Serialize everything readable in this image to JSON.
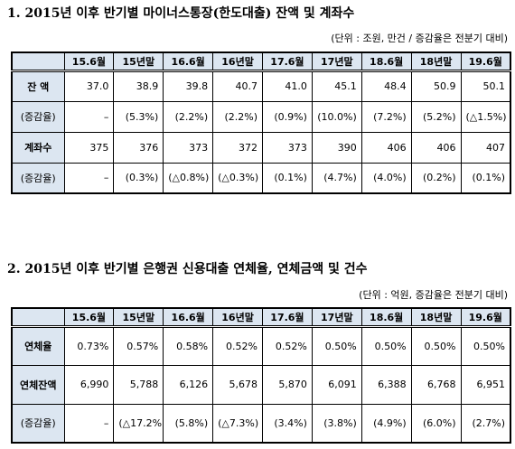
{
  "tables": [
    {
      "title": "1. 2015년 이후 반기별 마이너스통장(한도대출) 잔액 및 계좌수",
      "unit": "(단위 : 조원, 만건 / 증감율은 전분기 대비)",
      "columns": [
        "15.6월",
        "15년말",
        "16.6월",
        "16년말",
        "17.6월",
        "17년말",
        "18.6월",
        "18년말",
        "19.6월"
      ],
      "rows": [
        {
          "label": "잔 액",
          "cells": [
            "37.0",
            "38.9",
            "39.8",
            "40.7",
            "41.0",
            "45.1",
            "48.4",
            "50.9",
            "50.1"
          ]
        },
        {
          "label": "(증감율)",
          "cells": [
            "–",
            "(5.3%)",
            "(2.2%)",
            "(2.2%)",
            "(0.9%)",
            "(10.0%)",
            "(7.2%)",
            "(5.2%)",
            "(△1.5%)"
          ]
        },
        {
          "label": "계좌수",
          "cells": [
            "375",
            "376",
            "373",
            "372",
            "373",
            "390",
            "406",
            "406",
            "407"
          ]
        },
        {
          "label": "(증감율)",
          "cells": [
            "–",
            "(0.3%)",
            "(△0.8%)",
            "(△0.3%)",
            "(0.1%)",
            "(4.7%)",
            "(4.0%)",
            "(0.2%)",
            "(0.1%)"
          ]
        }
      ]
    },
    {
      "title": "2. 2015년 이후 반기별 은행권 신용대출 연체율, 연체금액 및 건수",
      "unit": "(단위 : 억원, 증감율은 전분기 대비)",
      "columns": [
        "15.6월",
        "15년말",
        "16.6월",
        "16년말",
        "17.6월",
        "17년말",
        "18.6월",
        "18년말",
        "19.6월"
      ],
      "rows": [
        {
          "label": "연체율",
          "cells": [
            "0.73%",
            "0.57%",
            "0.58%",
            "0.52%",
            "0.52%",
            "0.50%",
            "0.50%",
            "0.50%",
            "0.50%"
          ]
        },
        {
          "label": "연체잔액",
          "cells": [
            "6,990",
            "5,788",
            "6,126",
            "5,678",
            "5,870",
            "6,091",
            "6,388",
            "6,768",
            "6,951"
          ]
        },
        {
          "label": "(증감율)",
          "cells": [
            "–",
            "(△17.2%)",
            "(5.8%)",
            "(△7.3%)",
            "(3.4%)",
            "(3.8%)",
            "(4.9%)",
            "(6.0%)",
            "(2.7%)"
          ]
        }
      ]
    }
  ]
}
